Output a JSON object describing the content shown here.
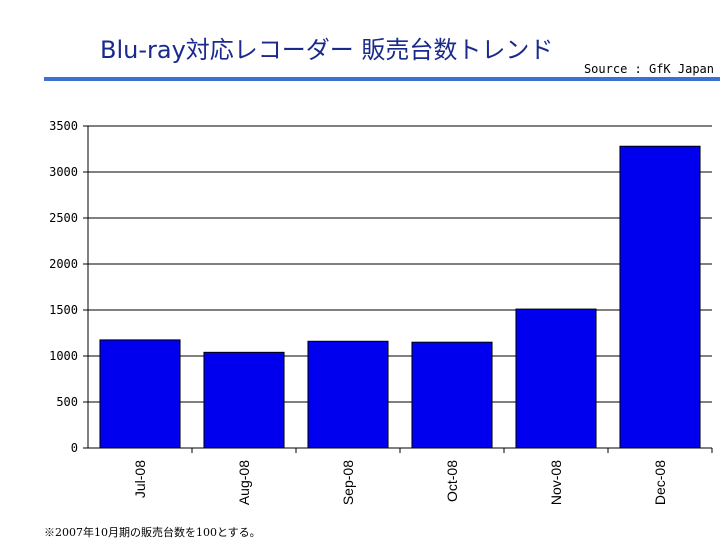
{
  "header": {
    "title": "Blu-ray対応レコーダー 販売台数トレンド",
    "source": "Source : GfK Japan"
  },
  "footer": {
    "note": "※2007年10月期の販売台数を100とする。"
  },
  "colors": {
    "bar": "#0000ee",
    "title": "#1a2a8c",
    "rule": "#3f6fd6",
    "grid": "#000000"
  },
  "chart_data": {
    "type": "bar",
    "categories": [
      "Jul-08",
      "Aug-08",
      "Sep-08",
      "Oct-08",
      "Nov-08",
      "Dec-08"
    ],
    "values": [
      1175,
      1040,
      1160,
      1150,
      1510,
      3280
    ],
    "ylim": [
      0,
      3500
    ],
    "yticks": [
      0,
      500,
      1000,
      1500,
      2000,
      2500,
      3000,
      3500
    ],
    "grid": true,
    "legend": "none"
  }
}
